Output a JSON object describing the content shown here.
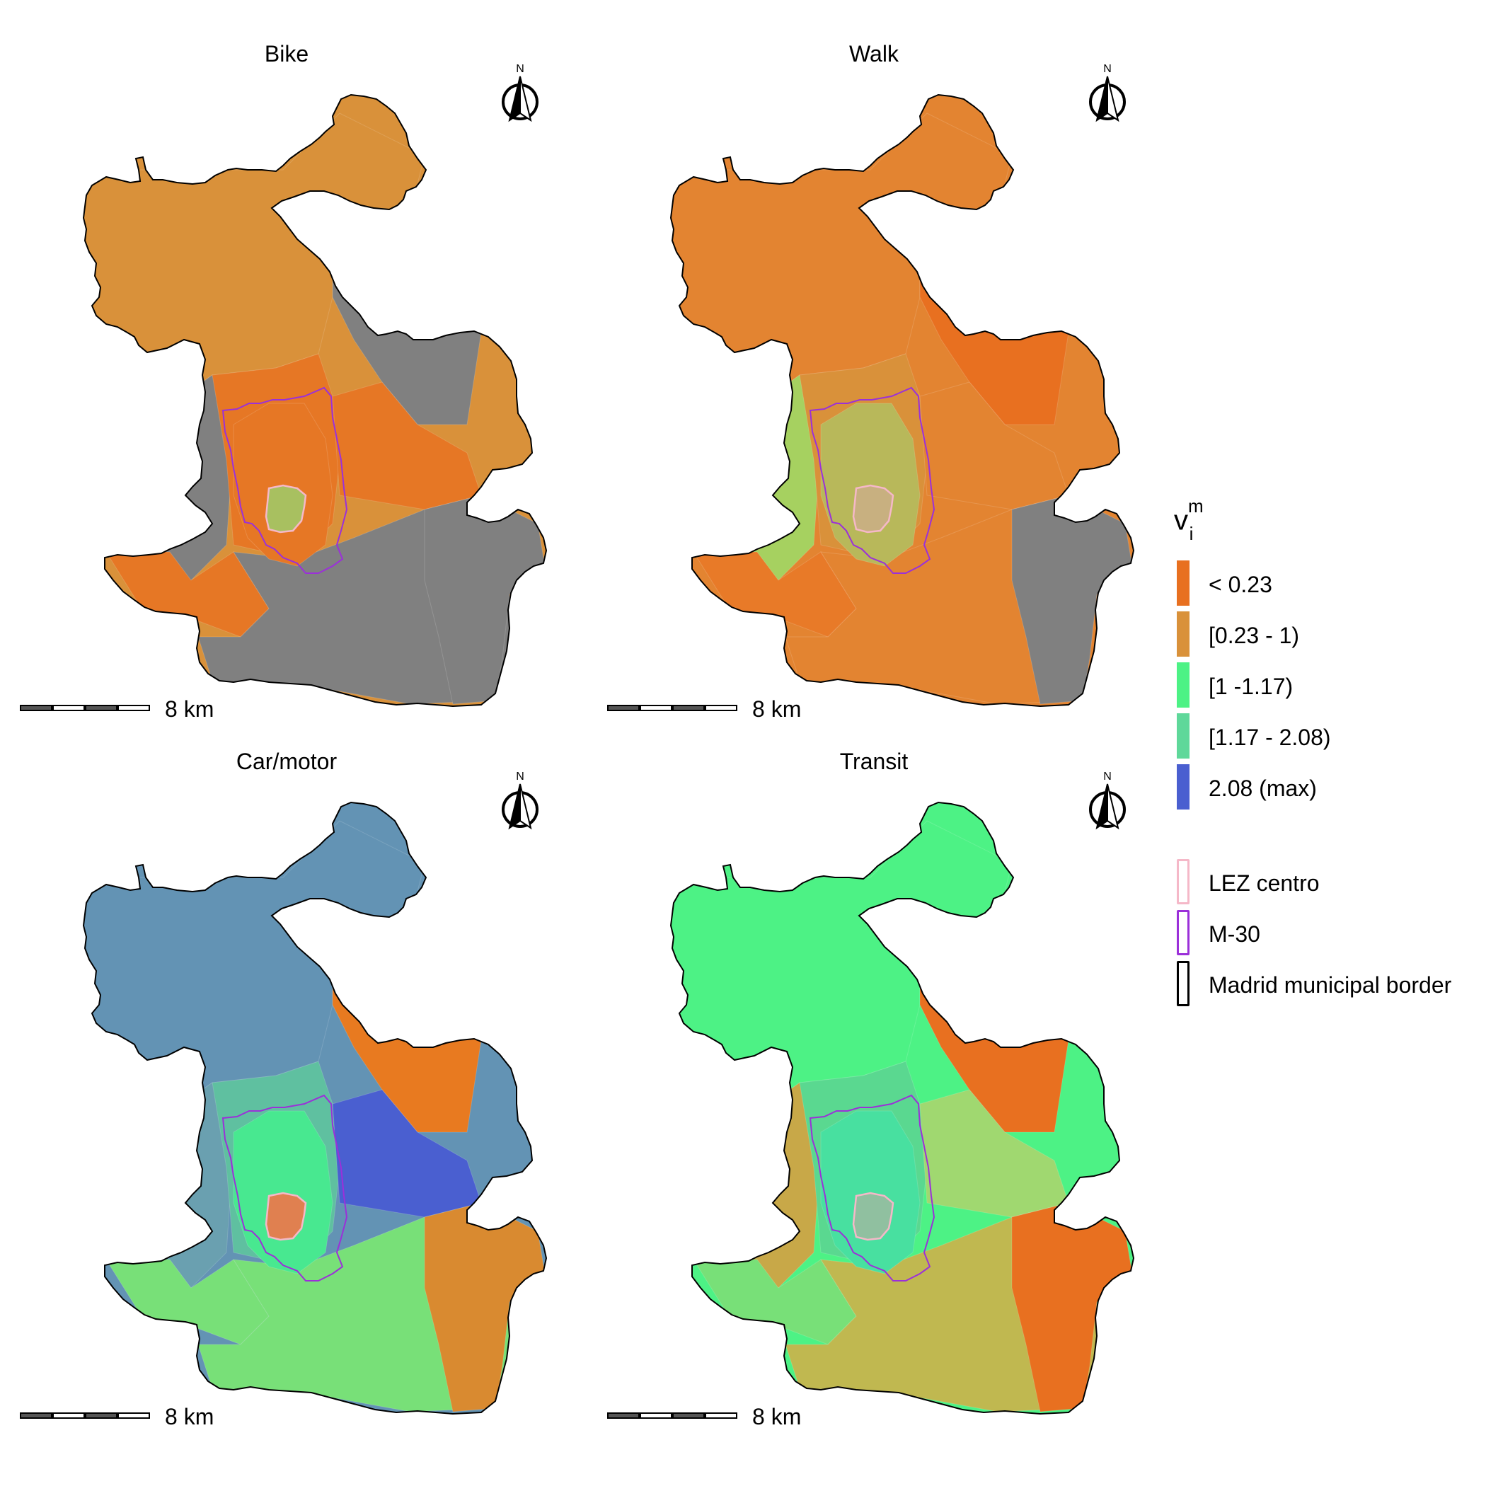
{
  "panels": [
    {
      "title": "Bike",
      "scale_label": "8 km",
      "north_label": "N",
      "zones": {
        "nw": "#d9913a",
        "ne": "#808080",
        "w": "#808080",
        "c": "#e67725",
        "e": "#e67725",
        "sw": "#e67725",
        "s": "#808080",
        "se": "#808080",
        "inner": "#e67725",
        "lez": "#a8c060"
      }
    },
    {
      "title": "Walk",
      "scale_label": "8 km",
      "north_label": "N",
      "zones": {
        "nw": "#e38431",
        "ne": "#e87020",
        "w": "#a6d160",
        "c": "#d9913a",
        "e": "#e38431",
        "sw": "#e87a28",
        "s": "#e38431",
        "se": "#808080",
        "inner": "#b8b85a",
        "lez": "#c8b080"
      }
    },
    {
      "title": "Car/motor",
      "scale_label": "8 km",
      "north_label": "N",
      "zones": {
        "nw": "#6393b4",
        "ne": "#e87a20",
        "w": "#6aa0b0",
        "c": "#5fc0a0",
        "e": "#4a5fd0",
        "sw": "#78e078",
        "s": "#78e078",
        "se": "#d98a30",
        "inner": "#48e890",
        "lez": "#e08050"
      }
    },
    {
      "title": "Transit",
      "scale_label": "8 km",
      "north_label": "N",
      "zones": {
        "nw": "#4df285",
        "ne": "#e87020",
        "w": "#c8a848",
        "c": "#5ad890",
        "e": "#a0d870",
        "sw": "#78e078",
        "s": "#c0b850",
        "se": "#e87020",
        "inner": "#48e0a0",
        "lez": "#90c0a0"
      }
    }
  ],
  "legend": {
    "title_main": "v",
    "title_sup": "m",
    "title_sub": "i",
    "items": [
      {
        "label": "< 0.23",
        "color": "#e87020"
      },
      {
        "label": "[0.23 - 1)",
        "color": "#d9913a"
      },
      {
        "label": "[1 -1.17)",
        "color": "#4df285"
      },
      {
        "label": "[1.17 - 2.08)",
        "color": "#5fd89a"
      },
      {
        "label": "2.08 (max)",
        "color": "#4a5fd0"
      }
    ],
    "boundaries": [
      {
        "label": "LEZ centro",
        "color": "#f5b8c8"
      },
      {
        "label": "M-30",
        "color": "#9b30d9"
      },
      {
        "label": "Madrid municipal border",
        "color": "#000000"
      }
    ]
  }
}
